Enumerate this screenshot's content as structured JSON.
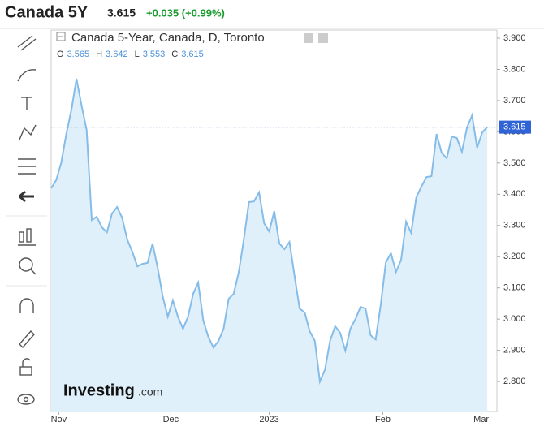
{
  "header": {
    "name": "Canada 5Y",
    "change": "+0.035 (+0.99%)"
  },
  "chart_data": {
    "type": "area",
    "title": "Canada 5-Year, Canada, D, Toronto",
    "ohlc": [
      {
        "label": "O",
        "value": "3.565"
      },
      {
        "label": "H",
        "value": "3.642"
      },
      {
        "label": "L",
        "value": "3.553"
      },
      {
        "label": "C",
        "value": "3.615"
      }
    ],
    "last_value": 3.615,
    "watermark": [
      "Investing",
      ".com"
    ],
    "color": "#86bce8",
    "fill": "#e0f0fa",
    "values": [
      3.419,
      3.445,
      3.502,
      3.593,
      3.671,
      3.77,
      3.684,
      3.606,
      3.317,
      3.328,
      3.294,
      3.278,
      3.338,
      3.359,
      3.325,
      3.255,
      3.216,
      3.169,
      3.177,
      3.18,
      3.242,
      3.164,
      3.073,
      3.008,
      3.06,
      3.008,
      2.969,
      3.008,
      3.081,
      3.117,
      2.995,
      2.943,
      2.909,
      2.93,
      2.969,
      3.065,
      3.081,
      3.151,
      3.255,
      3.375,
      3.377,
      3.406,
      3.307,
      3.281,
      3.346,
      3.242,
      3.224,
      3.247,
      3.138,
      3.034,
      3.021,
      2.961,
      2.93,
      2.8,
      2.839,
      2.93,
      2.977,
      2.956,
      2.899,
      2.969,
      3.0,
      3.039,
      3.034,
      2.948,
      2.935,
      3.047,
      3.182,
      3.211,
      3.151,
      3.19,
      3.312,
      3.276,
      3.39,
      3.424,
      3.455,
      3.458,
      3.593,
      3.533,
      3.515,
      3.585,
      3.58,
      3.536,
      3.614,
      3.653,
      3.549,
      3.598,
      3.615
    ],
    "xticks": [
      {
        "value": 1.5,
        "label": "Nov"
      },
      {
        "value": 23.6,
        "label": "Dec"
      },
      {
        "value": 43,
        "label": "2023"
      },
      {
        "value": 65.4,
        "label": "Feb"
      },
      {
        "value": 84.8,
        "label": "Mar"
      }
    ],
    "xlim": [
      0,
      87.9
    ],
    "ylim": [
      2.704,
      3.926
    ],
    "yticks": [
      {
        "value": 2.8,
        "label": "2.800"
      },
      {
        "value": 2.9,
        "label": "2.900"
      },
      {
        "value": 3.0,
        "label": "3.000"
      },
      {
        "value": 3.1,
        "label": "3.100"
      },
      {
        "value": 3.2,
        "label": "3.200"
      },
      {
        "value": 3.3,
        "label": "3.300"
      },
      {
        "value": 3.4,
        "label": "3.400"
      },
      {
        "value": 3.5,
        "label": "3.500"
      },
      {
        "value": 3.6,
        "label": "3.600"
      },
      {
        "value": 3.7,
        "label": "3.700"
      },
      {
        "value": 3.8,
        "label": "3.800"
      },
      {
        "value": 3.9,
        "label": "3.900"
      }
    ]
  }
}
